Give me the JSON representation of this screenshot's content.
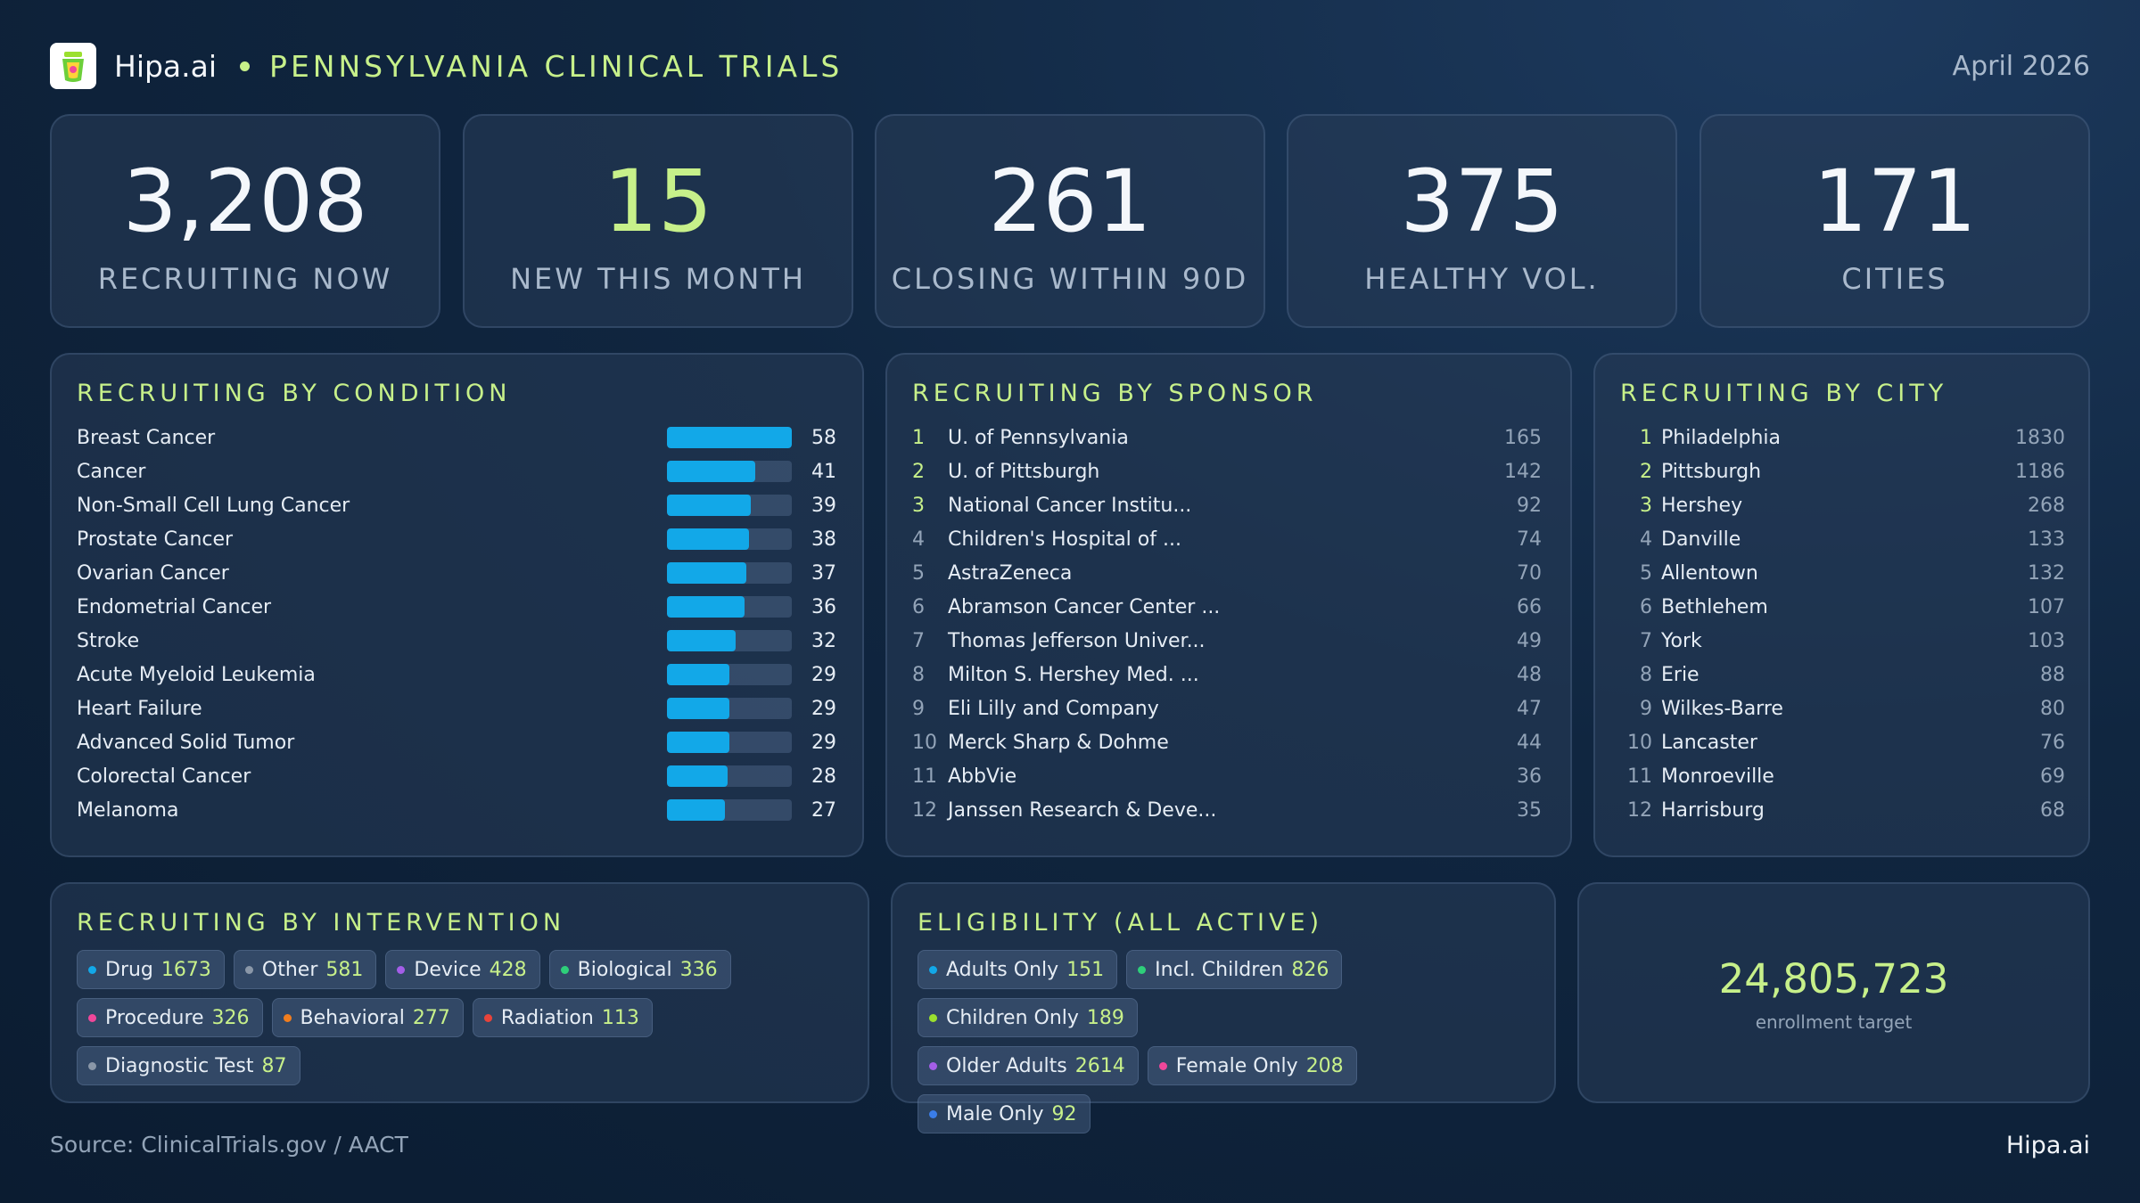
{
  "header": {
    "brand": "Hipa.ai",
    "title": "PENNSYLVANIA CLINICAL TRIALS",
    "date": "April 2026"
  },
  "kpis": [
    {
      "value": "3,208",
      "label": "RECRUITING NOW",
      "color": "#f4f7fb"
    },
    {
      "value": "15",
      "label": "NEW THIS MONTH",
      "color": "#c7f08a"
    },
    {
      "value": "261",
      "label": "CLOSING WITHIN 90D",
      "color": "#f4f7fb"
    },
    {
      "value": "375",
      "label": "HEALTHY VOL.",
      "color": "#f4f7fb"
    },
    {
      "value": "171",
      "label": "CITIES",
      "color": "#f4f7fb"
    }
  ],
  "condition": {
    "title": "RECRUITING BY CONDITION",
    "max": 58,
    "items": [
      {
        "name": "Breast Cancer",
        "value": 58
      },
      {
        "name": "Cancer",
        "value": 41
      },
      {
        "name": "Non-Small Cell Lung Cancer",
        "value": 39
      },
      {
        "name": "Prostate Cancer",
        "value": 38
      },
      {
        "name": "Ovarian Cancer",
        "value": 37
      },
      {
        "name": "Endometrial Cancer",
        "value": 36
      },
      {
        "name": "Stroke",
        "value": 32
      },
      {
        "name": "Acute Myeloid Leukemia",
        "value": 29
      },
      {
        "name": "Heart Failure",
        "value": 29
      },
      {
        "name": "Advanced Solid Tumor",
        "value": 29
      },
      {
        "name": "Colorectal Cancer",
        "value": 28
      },
      {
        "name": "Melanoma",
        "value": 27
      }
    ]
  },
  "sponsor": {
    "title": "RECRUITING BY SPONSOR",
    "items": [
      {
        "rank": "1",
        "name": "U. of Pennsylvania",
        "value": "165"
      },
      {
        "rank": "2",
        "name": "U. of Pittsburgh",
        "value": "142"
      },
      {
        "rank": "3",
        "name": "National Cancer Institu...",
        "value": "92"
      },
      {
        "rank": "4",
        "name": "Children's Hospital of ...",
        "value": "74"
      },
      {
        "rank": "5",
        "name": "AstraZeneca",
        "value": "70"
      },
      {
        "rank": "6",
        "name": "Abramson Cancer Center ...",
        "value": "66"
      },
      {
        "rank": "7",
        "name": "Thomas Jefferson Univer...",
        "value": "49"
      },
      {
        "rank": "8",
        "name": "Milton S. Hershey Med. ...",
        "value": "48"
      },
      {
        "rank": "9",
        "name": "Eli Lilly and Company",
        "value": "47"
      },
      {
        "rank": "10",
        "name": "Merck Sharp & Dohme",
        "value": "44"
      },
      {
        "rank": "11",
        "name": "AbbVie",
        "value": "36"
      },
      {
        "rank": "12",
        "name": "Janssen Research & Deve...",
        "value": "35"
      }
    ]
  },
  "city": {
    "title": "RECRUITING BY CITY",
    "items": [
      {
        "rank": "1",
        "name": "Philadelphia",
        "value": "1830"
      },
      {
        "rank": "2",
        "name": "Pittsburgh",
        "value": "1186"
      },
      {
        "rank": "3",
        "name": "Hershey",
        "value": "268"
      },
      {
        "rank": "4",
        "name": "Danville",
        "value": "133"
      },
      {
        "rank": "5",
        "name": "Allentown",
        "value": "132"
      },
      {
        "rank": "6",
        "name": "Bethlehem",
        "value": "107"
      },
      {
        "rank": "7",
        "name": "York",
        "value": "103"
      },
      {
        "rank": "8",
        "name": "Erie",
        "value": "88"
      },
      {
        "rank": "9",
        "name": "Wilkes-Barre",
        "value": "80"
      },
      {
        "rank": "10",
        "name": "Lancaster",
        "value": "76"
      },
      {
        "rank": "11",
        "name": "Monroeville",
        "value": "69"
      },
      {
        "rank": "12",
        "name": "Harrisburg",
        "value": "68"
      }
    ]
  },
  "intervention": {
    "title": "RECRUITING BY INTERVENTION",
    "items": [
      {
        "name": "Drug",
        "value": "1673",
        "color": "#12a8e8"
      },
      {
        "name": "Other",
        "value": "581",
        "color": "#8a97a8"
      },
      {
        "name": "Device",
        "value": "428",
        "color": "#a45ee8"
      },
      {
        "name": "Biological",
        "value": "336",
        "color": "#2ecf7a"
      },
      {
        "name": "Procedure",
        "value": "326",
        "color": "#f0479a"
      },
      {
        "name": "Behavioral",
        "value": "277",
        "color": "#f07d1e"
      },
      {
        "name": "Radiation",
        "value": "113",
        "color": "#e8433a"
      },
      {
        "name": "Diagnostic Test",
        "value": "87",
        "color": "#8a97a8"
      }
    ]
  },
  "eligibility": {
    "title": "ELIGIBILITY (ALL ACTIVE)",
    "items": [
      {
        "name": "Adults Only",
        "value": "151",
        "color": "#12a8e8"
      },
      {
        "name": "Incl. Children",
        "value": "826",
        "color": "#2ecf7a"
      },
      {
        "name": "Children Only",
        "value": "189",
        "color": "#9be02e"
      },
      {
        "name": "Older Adults",
        "value": "2614",
        "color": "#a45ee8"
      },
      {
        "name": "Female Only",
        "value": "208",
        "color": "#f0479a"
      },
      {
        "name": "Male Only",
        "value": "92",
        "color": "#3a7de8"
      }
    ]
  },
  "enrollment": {
    "value": "24,805,723",
    "label": "enrollment target"
  },
  "footer": {
    "source": "Source: ClinicalTrials.gov / AACT",
    "brand": "Hipa.ai"
  }
}
